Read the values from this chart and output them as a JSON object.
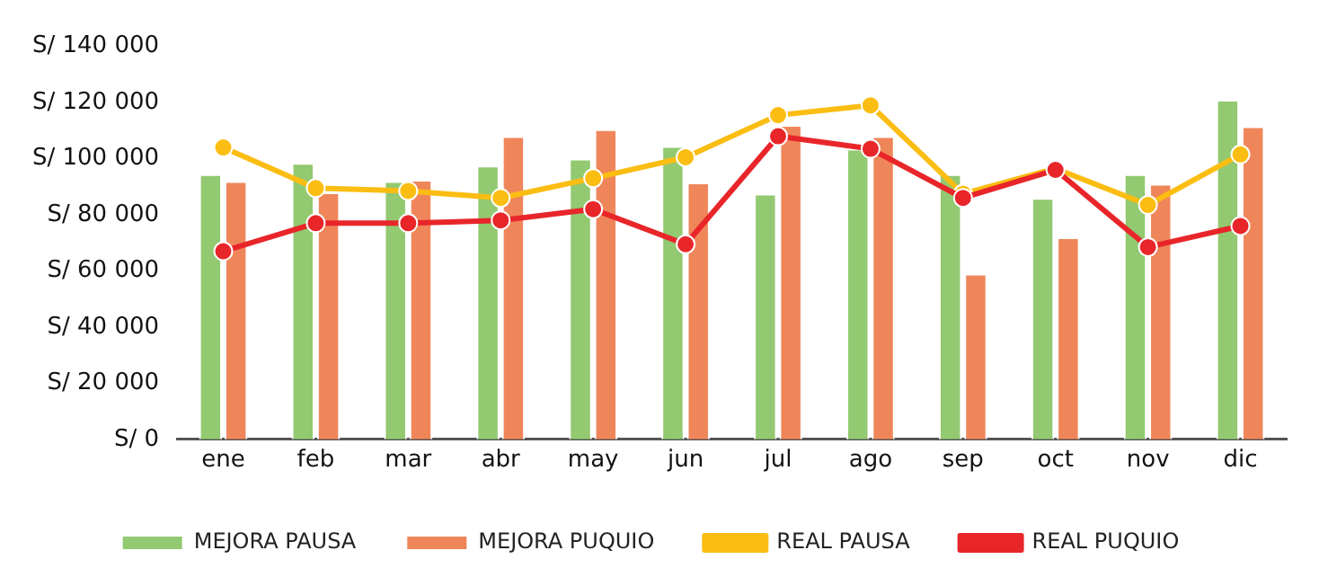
{
  "chart_data": {
    "type": "bar",
    "categories": [
      "ene",
      "feb",
      "mar",
      "abr",
      "may",
      "jun",
      "jul",
      "ago",
      "sep",
      "oct",
      "nov",
      "dic"
    ],
    "series": [
      {
        "name": "MEJORA PAUSA",
        "color": "#92c971",
        "values": [
          94500,
          98500,
          92000,
          97500,
          100000,
          104500,
          87500,
          103500,
          94500,
          86000,
          94500,
          121000
        ]
      },
      {
        "name": "MEJORA PUQUIO",
        "color": "#ef865a",
        "values": [
          92000,
          88000,
          92500,
          108000,
          110500,
          91500,
          112000,
          108000,
          59000,
          72000,
          91000,
          111500
        ]
      },
      {
        "name": "REAL PAUSA",
        "type": "line",
        "color": "#fbbd12",
        "values": [
          104000,
          89500,
          88500,
          86000,
          93000,
          100500,
          115500,
          119000,
          87500,
          96500,
          83500,
          101500
        ]
      },
      {
        "name": "REAL PUQUIO",
        "type": "line",
        "color": "#e8262a",
        "values": [
          67000,
          77000,
          77000,
          78000,
          82000,
          69500,
          108000,
          103500,
          86000,
          96000,
          68500,
          76000
        ]
      }
    ],
    "ylim": [
      0,
      140000
    ],
    "yticks": [
      {
        "value": 0,
        "label": "S/ 0"
      },
      {
        "value": 20000,
        "label": "S/ 20 000"
      },
      {
        "value": 40000,
        "label": "S/ 40 000"
      },
      {
        "value": 60000,
        "label": "S/ 60 000"
      },
      {
        "value": 80000,
        "label": "S/ 80 000"
      },
      {
        "value": 100000,
        "label": "S/ 100 000"
      },
      {
        "value": 120000,
        "label": "S/ 120 000"
      },
      {
        "value": 140000,
        "label": "S/ 140 000"
      }
    ],
    "grid": false,
    "legend": "bottom",
    "marker": "circle"
  }
}
